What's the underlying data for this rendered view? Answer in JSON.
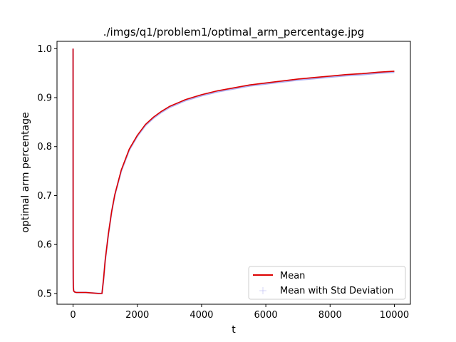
{
  "chart_data": {
    "type": "line",
    "title": "./imgs/q1/problem1/optimal_arm_percentage.jpg",
    "xlabel": "t",
    "ylabel": "optimal arm percentage",
    "xlim": [
      -500,
      10500
    ],
    "ylim": [
      0.478,
      1.015
    ],
    "x_ticks": [
      0,
      2000,
      4000,
      6000,
      8000,
      10000
    ],
    "x_tick_labels": [
      "0",
      "2000",
      "4000",
      "6000",
      "8000",
      "10000"
    ],
    "y_ticks": [
      0.5,
      0.6,
      0.7,
      0.8,
      0.9,
      1.0
    ],
    "y_tick_labels": [
      "0.5",
      "0.6",
      "0.7",
      "0.8",
      "0.9",
      "1.0"
    ],
    "grid": false,
    "legend_position": "lower-right",
    "series": [
      {
        "name": "Mean",
        "color": "#dd0000",
        "x": [
          0,
          2,
          5,
          10,
          20,
          50,
          100,
          200,
          400,
          600,
          800,
          900,
          950,
          1000,
          1100,
          1200,
          1300,
          1500,
          1750,
          2000,
          2250,
          2500,
          2750,
          3000,
          3500,
          4000,
          4500,
          5000,
          5500,
          6000,
          6500,
          7000,
          7500,
          8000,
          8500,
          9000,
          9500,
          10000
        ],
        "y": [
          1.0,
          0.6,
          0.53,
          0.512,
          0.505,
          0.503,
          0.502,
          0.502,
          0.502,
          0.501,
          0.5,
          0.5,
          0.53,
          0.568,
          0.622,
          0.667,
          0.702,
          0.752,
          0.795,
          0.823,
          0.845,
          0.86,
          0.872,
          0.882,
          0.896,
          0.906,
          0.914,
          0.92,
          0.926,
          0.93,
          0.934,
          0.938,
          0.941,
          0.944,
          0.947,
          0.949,
          0.952,
          0.954
        ]
      },
      {
        "name": "Mean with Std Deviation",
        "color": "#a6a6ee",
        "x": [
          0,
          2,
          5,
          10,
          20,
          50,
          100,
          200,
          400,
          600,
          800,
          900,
          950,
          1000,
          1100,
          1200,
          1300,
          1500,
          1750,
          2000,
          2250,
          2500,
          2750,
          3000,
          3500,
          4000,
          4500,
          5000,
          5500,
          6000,
          6500,
          7000,
          7500,
          8000,
          8500,
          9000,
          9500,
          10000
        ],
        "y": [
          1.0,
          0.6,
          0.53,
          0.512,
          0.505,
          0.503,
          0.502,
          0.502,
          0.502,
          0.501,
          0.5,
          0.5,
          0.529,
          0.567,
          0.621,
          0.666,
          0.701,
          0.75,
          0.793,
          0.821,
          0.843,
          0.858,
          0.87,
          0.88,
          0.894,
          0.904,
          0.912,
          0.918,
          0.924,
          0.928,
          0.932,
          0.936,
          0.939,
          0.942,
          0.945,
          0.947,
          0.95,
          0.952
        ]
      }
    ]
  }
}
